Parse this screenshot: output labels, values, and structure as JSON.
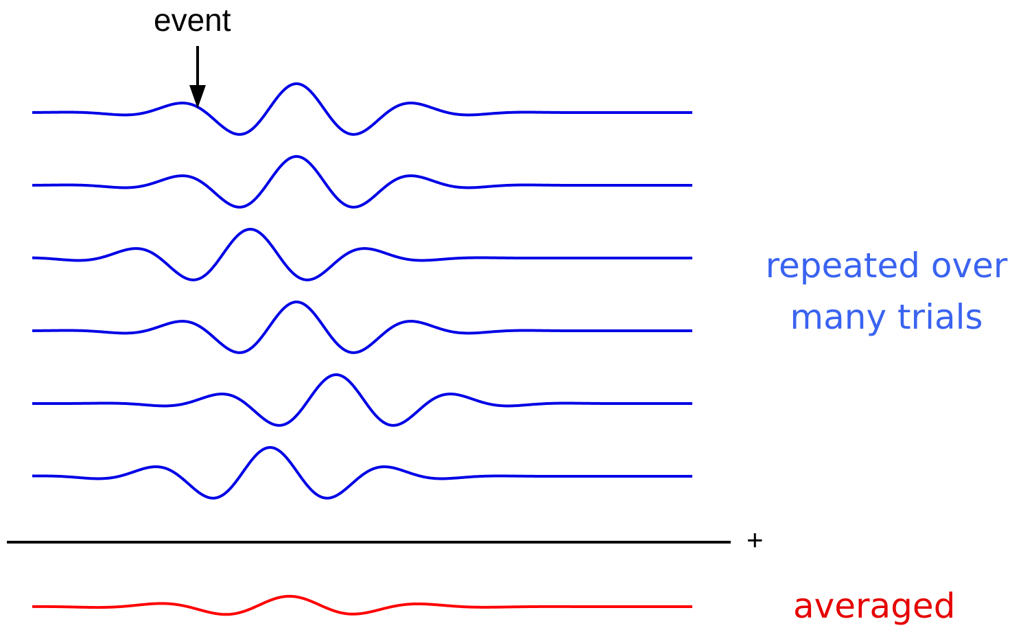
{
  "labels": {
    "event": "event",
    "plus": "+",
    "repeated_trials": "repeated over many trials",
    "averaged": "averaged"
  },
  "colors": {
    "trial_wave": "#0000e6",
    "average_wave": "#ff0000",
    "trials_text": "#3a63f0",
    "averaged_text": "#e60000",
    "axis": "#000000"
  },
  "trials": [
    {
      "trial": 1,
      "peak_time": 0.4
    },
    {
      "trial": 2,
      "peak_time": 0.4
    },
    {
      "trial": 3,
      "peak_time": 0.33
    },
    {
      "trial": 4,
      "peak_time": 0.4
    },
    {
      "trial": 5,
      "peak_time": 0.46
    },
    {
      "trial": 6,
      "peak_time": 0.36
    }
  ]
}
